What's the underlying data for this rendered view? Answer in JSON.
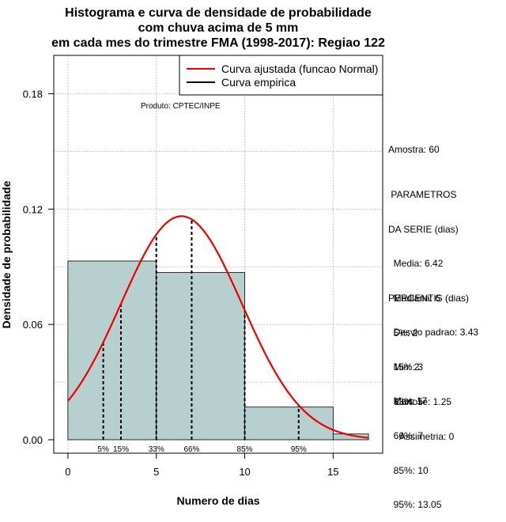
{
  "chart_data": {
    "type": "histogram",
    "title_lines": [
      "Histograma e curva de densidade de probabilidade",
      "com chuva acima de 5 mm",
      "em cada mes do trimestre FMA (1998-2017): Regiao 122"
    ],
    "xlabel": "Numero de dias",
    "ylabel": "Densidade de probabilidade",
    "xlim": [
      -0.8,
      17.8
    ],
    "ylim": [
      -0.007,
      0.2
    ],
    "xticks": [
      0,
      5,
      10,
      15
    ],
    "yticks": [
      0.0,
      0.06,
      0.12,
      0.18
    ],
    "ytick_labels": [
      "0.00",
      "0.06",
      "0.12",
      "0.18"
    ],
    "bins": [
      {
        "x0": 0,
        "x1": 5,
        "density": 0.093
      },
      {
        "x0": 5,
        "x1": 10,
        "density": 0.087
      },
      {
        "x0": 10,
        "x1": 15,
        "density": 0.017
      },
      {
        "x0": 15,
        "x1": 17,
        "density": 0.003
      }
    ],
    "normal_curve": {
      "mean": 6.42,
      "sd": 3.43,
      "x_from": 0,
      "x_to": 17
    },
    "percentile_lines": [
      {
        "x": 2,
        "label": "5%"
      },
      {
        "x": 3,
        "label": "15%"
      },
      {
        "x": 5,
        "label": "33%"
      },
      {
        "x": 7,
        "label": "66%"
      },
      {
        "x": 10,
        "label": "85%"
      },
      {
        "x": 13.05,
        "label": "95%"
      }
    ],
    "legend": [
      {
        "label": "Curva ajustada (funcao Normal)",
        "color": "#ee0000"
      },
      {
        "label": "Curva empirica",
        "color": "#000000"
      }
    ],
    "annotation": "Produto: CPTEC/INPE",
    "colors": {
      "bar_fill": "#b7cfcf",
      "curve": "#ee0000",
      "grid": "#b3b3b3"
    }
  },
  "side_panel": {
    "amostra": "Amostra: 60",
    "params_lines": [
      " PARAMETROS",
      "DA SERIE (dias)",
      "  Media: 6.42",
      "  Mediana: 6",
      "  Desvio padrao: 3.43",
      "  Min: 2",
      "  Max: 17"
    ],
    "percentis_lines": [
      "PERCENTIS (dias)",
      "  5%: 2",
      "  15%: 3",
      "  33%: 5",
      "  66%: 7",
      "  85%: 10",
      "  95%: 13.05"
    ],
    "shape_lines": [
      "Curtose: 1.25",
      "  Assimetria: 0"
    ]
  }
}
